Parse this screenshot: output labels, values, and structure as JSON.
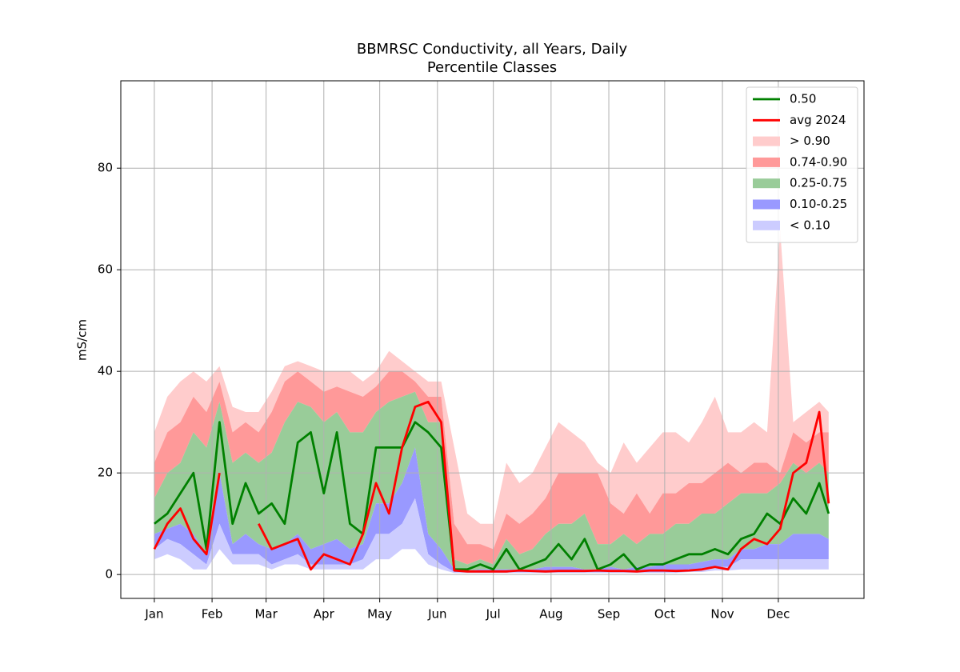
{
  "chart_data": {
    "type": "percentile_bands",
    "title": "BBMRSC Conductivity, all Years, Daily",
    "subtitle": "Percentile Classes",
    "ylabel": "mS/cm",
    "xlim": [
      -17,
      382
    ],
    "ylim": [
      -4.7,
      97.2
    ],
    "xticks": [
      {
        "value": 1,
        "label": "Jan"
      },
      {
        "value": 32,
        "label": "Feb"
      },
      {
        "value": 61,
        "label": "Mar"
      },
      {
        "value": 92,
        "label": "Apr"
      },
      {
        "value": 122,
        "label": "May"
      },
      {
        "value": 153,
        "label": "Jun"
      },
      {
        "value": 183,
        "label": "Jul"
      },
      {
        "value": 214,
        "label": "Aug"
      },
      {
        "value": 245,
        "label": "Sep"
      },
      {
        "value": 275,
        "label": "Oct"
      },
      {
        "value": 306,
        "label": "Nov"
      },
      {
        "value": 336,
        "label": "Dec"
      }
    ],
    "yticks": [
      0,
      20,
      40,
      60,
      80
    ],
    "grid": true,
    "legend": "upper right",
    "x": [
      1,
      8,
      15,
      22,
      29,
      36,
      43,
      50,
      57,
      64,
      71,
      78,
      85,
      92,
      99,
      106,
      113,
      120,
      127,
      134,
      141,
      148,
      155,
      162,
      169,
      176,
      183,
      190,
      197,
      204,
      211,
      218,
      225,
      232,
      239,
      246,
      253,
      260,
      267,
      274,
      281,
      288,
      295,
      302,
      309,
      316,
      323,
      330,
      337,
      344,
      351,
      358,
      363
    ],
    "series": [
      {
        "name": "0.50",
        "color": "#008000",
        "values": [
          10,
          12,
          16,
          20,
          5,
          30,
          10,
          18,
          12,
          14,
          10,
          26,
          28,
          16,
          28,
          10,
          8,
          25,
          25,
          25,
          30,
          28,
          25,
          1,
          1,
          2,
          1,
          5,
          1,
          2,
          3,
          6,
          3,
          7,
          1,
          2,
          4,
          1,
          2,
          2,
          3,
          4,
          4,
          5,
          4,
          7,
          8,
          12,
          10,
          15,
          12,
          18,
          12
        ]
      },
      {
        "name": "avg 2024",
        "color": "#ff0000",
        "values": [
          5,
          10,
          13,
          7,
          4,
          20,
          null,
          null,
          10,
          5,
          6,
          7,
          1,
          4,
          3,
          2,
          8,
          18,
          12,
          25,
          33,
          34,
          30,
          0.8,
          0.6,
          0.6,
          0.6,
          0.6,
          0.8,
          0.7,
          0.6,
          0.7,
          0.7,
          0.7,
          0.8,
          0.7,
          0.7,
          0.6,
          0.8,
          0.8,
          0.7,
          0.8,
          1,
          1.5,
          1,
          5,
          7,
          6,
          9,
          20,
          22,
          32,
          14
        ]
      }
    ],
    "bands": [
      {
        "name": "> 0.90",
        "color": "#ffcccc",
        "lower": [
          22,
          28,
          30,
          35,
          32,
          38,
          28,
          30,
          28,
          32,
          38,
          40,
          38,
          36,
          37,
          36,
          35,
          37,
          40,
          40,
          38,
          35,
          35,
          10,
          6,
          6,
          5,
          12,
          10,
          12,
          15,
          20,
          20,
          20,
          20,
          14,
          12,
          16,
          12,
          16,
          16,
          18,
          18,
          20,
          22,
          20,
          22,
          22,
          20,
          28,
          26,
          28,
          28
        ],
        "upper": [
          28,
          35,
          38,
          40,
          38,
          41,
          33,
          32,
          32,
          36,
          41,
          42,
          41,
          40,
          40,
          40,
          38,
          40,
          44,
          42,
          40,
          38,
          38,
          25,
          12,
          10,
          10,
          22,
          18,
          20,
          25,
          30,
          28,
          26,
          22,
          20,
          26,
          22,
          25,
          28,
          28,
          26,
          30,
          35,
          28,
          28,
          30,
          28,
          68,
          30,
          32,
          34,
          32
        ]
      },
      {
        "name": "0.74-0.90",
        "color": "#ff9999",
        "lower": [
          15,
          20,
          22,
          28,
          25,
          34,
          22,
          24,
          22,
          24,
          30,
          34,
          33,
          30,
          32,
          28,
          28,
          32,
          34,
          35,
          36,
          30,
          30,
          3,
          2,
          3,
          2,
          7,
          4,
          5,
          8,
          10,
          10,
          12,
          6,
          6,
          8,
          6,
          8,
          8,
          10,
          10,
          12,
          12,
          14,
          16,
          16,
          16,
          18,
          22,
          20,
          22,
          20
        ],
        "upper": [
          22,
          28,
          30,
          35,
          32,
          38,
          28,
          30,
          28,
          32,
          38,
          40,
          38,
          36,
          37,
          36,
          35,
          37,
          40,
          40,
          38,
          35,
          35,
          10,
          6,
          6,
          5,
          12,
          10,
          12,
          15,
          20,
          20,
          20,
          20,
          14,
          12,
          16,
          12,
          16,
          16,
          18,
          18,
          20,
          22,
          20,
          22,
          22,
          20,
          28,
          26,
          28,
          28
        ]
      },
      {
        "name": "0.25-0.75",
        "color": "#99cc99",
        "lower": [
          8,
          9,
          10,
          8,
          4,
          20,
          6,
          8,
          6,
          5,
          6,
          8,
          5,
          6,
          7,
          5,
          6,
          14,
          14,
          18,
          25,
          8,
          5,
          1,
          0.8,
          1,
          1,
          1,
          1,
          1,
          1.5,
          1.5,
          1.5,
          1,
          1,
          1.5,
          1,
          1.5,
          1.5,
          2,
          2,
          2,
          2.5,
          3,
          3,
          5,
          5,
          6,
          6,
          8,
          8,
          8,
          7
        ],
        "upper": [
          15,
          20,
          22,
          28,
          25,
          34,
          22,
          24,
          22,
          24,
          30,
          34,
          33,
          30,
          32,
          28,
          28,
          32,
          34,
          35,
          36,
          30,
          30,
          3,
          2,
          3,
          2,
          7,
          4,
          5,
          8,
          10,
          10,
          12,
          6,
          6,
          8,
          6,
          8,
          8,
          10,
          10,
          12,
          12,
          14,
          16,
          16,
          16,
          18,
          22,
          20,
          22,
          20
        ]
      },
      {
        "name": "0.10-0.25",
        "color": "#9999ff",
        "lower": [
          5,
          7,
          6,
          4,
          2,
          10,
          4,
          4,
          4,
          2,
          3,
          4,
          2,
          2,
          2,
          2,
          3,
          8,
          8,
          10,
          15,
          4,
          2,
          0.5,
          0.5,
          0.5,
          0.5,
          0.5,
          0.5,
          0.5,
          0.5,
          0.5,
          0.5,
          0.5,
          0.5,
          0.5,
          0.5,
          0.5,
          0.5,
          0.5,
          0.5,
          1,
          1,
          1.5,
          1.5,
          3,
          3,
          3,
          3,
          3,
          3,
          3,
          3
        ],
        "upper": [
          8,
          9,
          10,
          8,
          4,
          20,
          6,
          8,
          6,
          5,
          6,
          8,
          5,
          6,
          7,
          5,
          6,
          14,
          14,
          18,
          25,
          8,
          5,
          1,
          0.8,
          1,
          1,
          1,
          1,
          1,
          1.5,
          1.5,
          1.5,
          1,
          1,
          1.5,
          1,
          1.5,
          1.5,
          2,
          2,
          2,
          2.5,
          3,
          3,
          5,
          5,
          6,
          6,
          8,
          8,
          8,
          7
        ]
      },
      {
        "name": "< 0.10",
        "color": "#ccccff",
        "lower": [
          3,
          4,
          3,
          1,
          1,
          5,
          2,
          2,
          2,
          1,
          2,
          2,
          1,
          1,
          1,
          1,
          1,
          3,
          3,
          5,
          5,
          2,
          1,
          0.3,
          0.3,
          0.3,
          0.3,
          0.3,
          0.3,
          0.3,
          0.3,
          0.3,
          0.3,
          0.3,
          0.3,
          0.3,
          0.3,
          0.3,
          0.3,
          0.3,
          0.3,
          0.5,
          0.5,
          0.8,
          0.8,
          1,
          1,
          1,
          1,
          1,
          1,
          1,
          1
        ],
        "upper": [
          5,
          7,
          6,
          4,
          2,
          10,
          4,
          4,
          4,
          2,
          3,
          4,
          2,
          2,
          2,
          2,
          3,
          8,
          8,
          10,
          15,
          4,
          2,
          0.5,
          0.5,
          0.5,
          0.5,
          0.5,
          0.5,
          0.5,
          0.5,
          0.5,
          0.5,
          0.5,
          0.5,
          0.5,
          0.5,
          0.5,
          0.5,
          0.5,
          0.5,
          1,
          1,
          1.5,
          1.5,
          3,
          3,
          3,
          3,
          3,
          3,
          3,
          3
        ]
      }
    ]
  }
}
